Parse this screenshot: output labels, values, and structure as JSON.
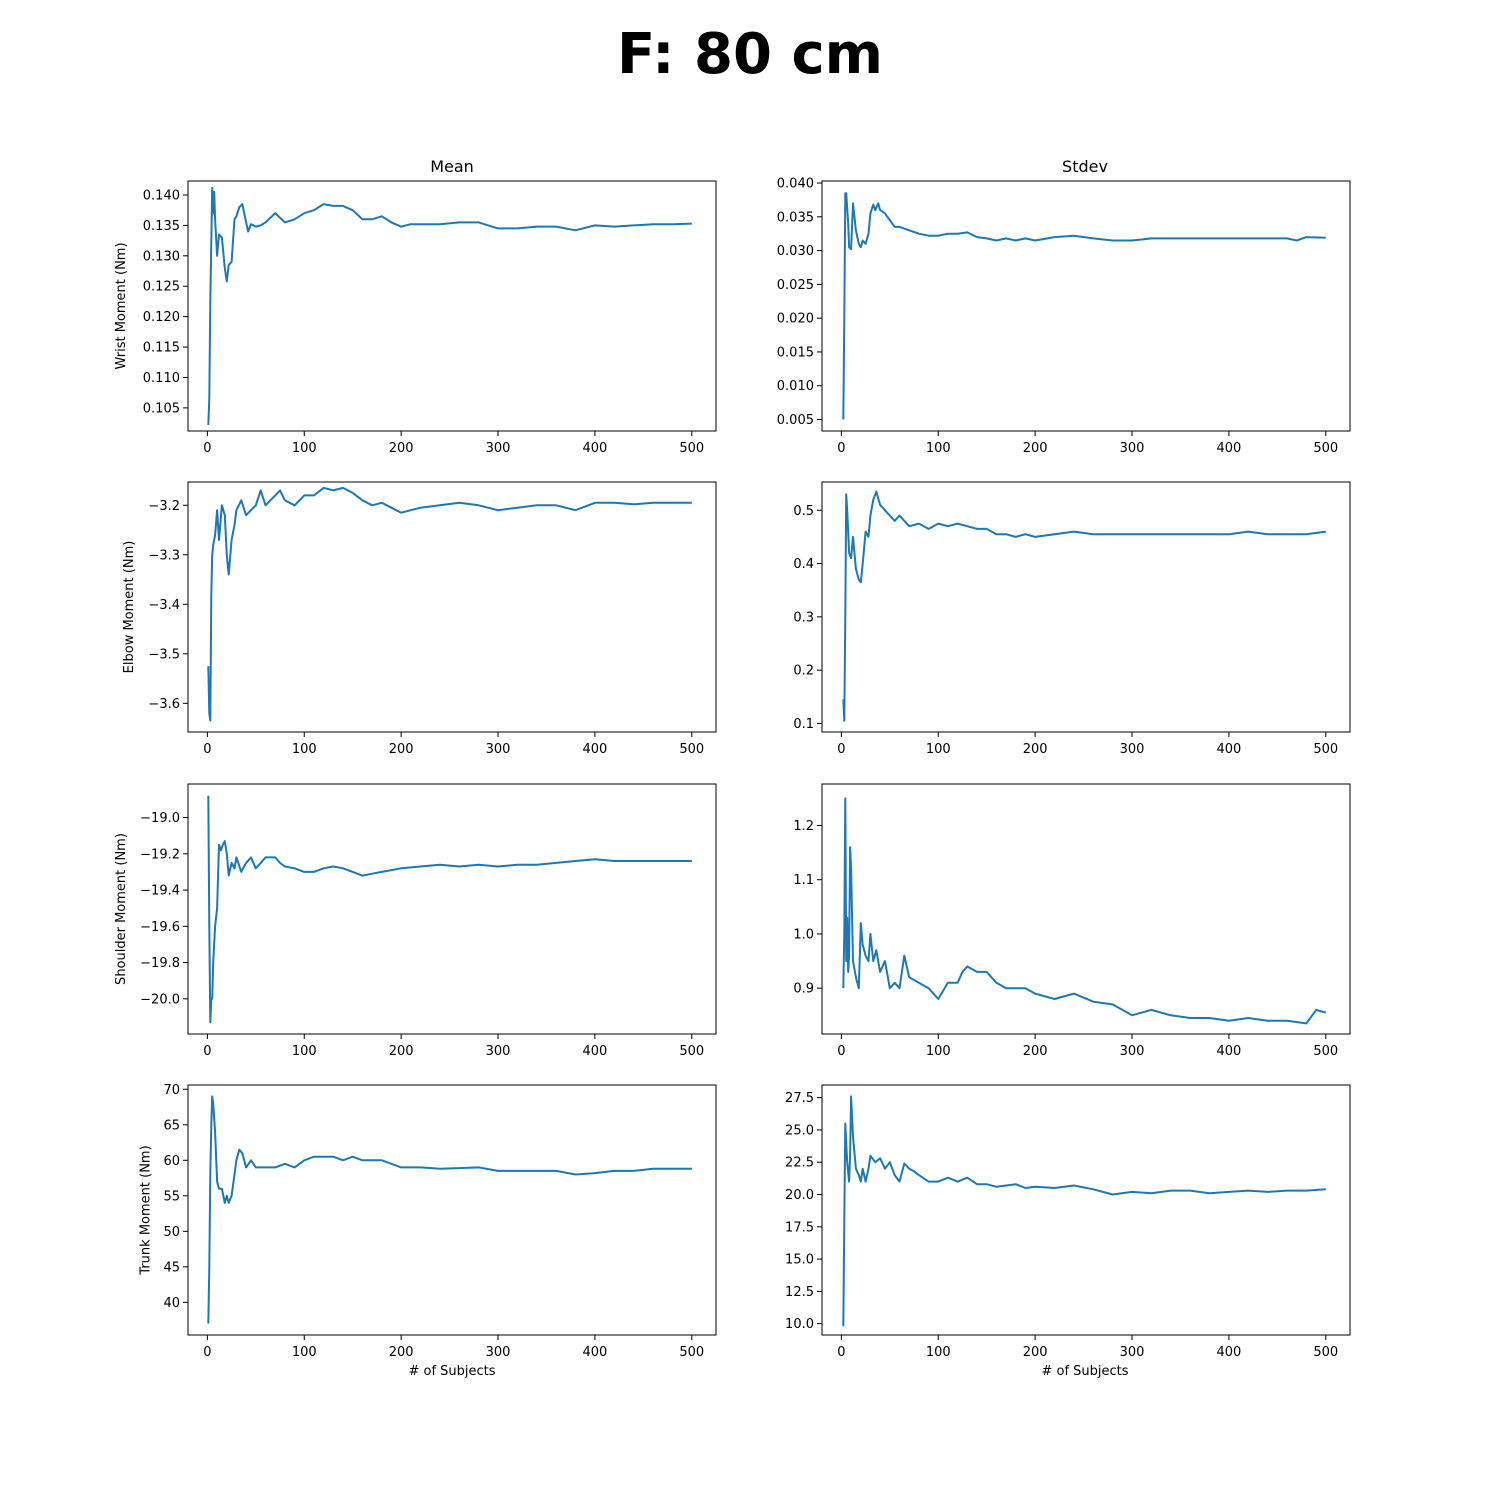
{
  "title": "F: 80 cm",
  "column_titles": [
    "Mean",
    "Stdev"
  ],
  "xlabel": "# of Subjects",
  "colors": {
    "line": "#1f77b4"
  },
  "chart_data": [
    {
      "type": "line",
      "column": "Mean",
      "ylabel": "Wrist Moment (Nm)",
      "xlim": [
        -20,
        525
      ],
      "ylim": [
        0.1012,
        0.1423
      ],
      "xticks": [
        0,
        100,
        200,
        300,
        400,
        500
      ],
      "yticks": [
        0.105,
        0.11,
        0.115,
        0.12,
        0.125,
        0.13,
        0.135,
        0.14
      ],
      "ytick_labels": [
        "0.105",
        "0.110",
        "0.115",
        "0.120",
        "0.125",
        "0.130",
        "0.135",
        "0.140"
      ],
      "x": [
        1,
        2,
        3,
        5,
        6,
        7,
        8,
        10,
        12,
        15,
        18,
        20,
        22,
        25,
        28,
        30,
        33,
        36,
        38,
        42,
        45,
        50,
        55,
        60,
        70,
        80,
        90,
        100,
        110,
        120,
        130,
        140,
        150,
        160,
        170,
        180,
        190,
        200,
        210,
        220,
        240,
        260,
        280,
        300,
        320,
        340,
        360,
        380,
        400,
        420,
        440,
        460,
        480,
        500
      ],
      "y": [
        0.1022,
        0.1065,
        0.1225,
        0.1412,
        0.137,
        0.1405,
        0.136,
        0.13,
        0.1335,
        0.133,
        0.128,
        0.1258,
        0.1285,
        0.129,
        0.136,
        0.1365,
        0.138,
        0.1385,
        0.137,
        0.134,
        0.1352,
        0.1348,
        0.135,
        0.1355,
        0.137,
        0.1355,
        0.136,
        0.137,
        0.1375,
        0.1385,
        0.1382,
        0.1382,
        0.1375,
        0.136,
        0.136,
        0.1365,
        0.1355,
        0.1348,
        0.1352,
        0.1352,
        0.1352,
        0.1355,
        0.1355,
        0.1345,
        0.1345,
        0.1348,
        0.1348,
        0.1342,
        0.135,
        0.1348,
        0.135,
        0.1352,
        0.1352,
        0.1353
      ]
    },
    {
      "type": "line",
      "column": "Stdev",
      "ylabel": "",
      "xlim": [
        -20,
        525
      ],
      "ylim": [
        0.0033,
        0.0403
      ],
      "xticks": [
        0,
        100,
        200,
        300,
        400,
        500
      ],
      "yticks": [
        0.005,
        0.01,
        0.015,
        0.02,
        0.025,
        0.03,
        0.035,
        0.04
      ],
      "ytick_labels": [
        "0.005",
        "0.010",
        "0.015",
        "0.020",
        "0.025",
        "0.030",
        "0.035",
        "0.040"
      ],
      "x": [
        2,
        3,
        4,
        5,
        7,
        8,
        10,
        12,
        15,
        18,
        20,
        22,
        25,
        28,
        30,
        33,
        35,
        38,
        40,
        45,
        50,
        55,
        60,
        70,
        80,
        90,
        100,
        110,
        120,
        130,
        140,
        150,
        160,
        170,
        180,
        190,
        200,
        220,
        240,
        260,
        280,
        300,
        320,
        340,
        360,
        380,
        400,
        420,
        440,
        460,
        470,
        480,
        500
      ],
      "y": [
        0.005,
        0.02,
        0.0385,
        0.0385,
        0.034,
        0.0305,
        0.0302,
        0.037,
        0.033,
        0.031,
        0.0305,
        0.0315,
        0.031,
        0.0325,
        0.0355,
        0.0368,
        0.036,
        0.037,
        0.036,
        0.0355,
        0.0345,
        0.0335,
        0.0335,
        0.033,
        0.0325,
        0.0322,
        0.0322,
        0.0325,
        0.0325,
        0.0327,
        0.032,
        0.0318,
        0.0315,
        0.0318,
        0.0315,
        0.0318,
        0.0315,
        0.032,
        0.0322,
        0.0318,
        0.0315,
        0.0315,
        0.0318,
        0.0318,
        0.0318,
        0.0318,
        0.0318,
        0.0318,
        0.0318,
        0.0318,
        0.0315,
        0.032,
        0.0319
      ]
    },
    {
      "type": "line",
      "column": "Mean",
      "ylabel": "Elbow Moment (Nm)",
      "xlim": [
        -20,
        525
      ],
      "ylim": [
        -3.658,
        -3.153
      ],
      "xticks": [
        0,
        100,
        200,
        300,
        400,
        500
      ],
      "yticks": [
        -3.6,
        -3.5,
        -3.4,
        -3.3,
        -3.2
      ],
      "ytick_labels": [
        "−3.6",
        "−3.5",
        "−3.4",
        "−3.3",
        "−3.2"
      ],
      "x": [
        1,
        2,
        3,
        4,
        5,
        6,
        8,
        10,
        12,
        15,
        18,
        20,
        22,
        25,
        28,
        30,
        35,
        40,
        45,
        50,
        55,
        60,
        70,
        75,
        80,
        90,
        100,
        110,
        120,
        130,
        140,
        150,
        160,
        170,
        180,
        190,
        200,
        220,
        240,
        260,
        280,
        300,
        320,
        340,
        360,
        380,
        400,
        420,
        440,
        460,
        480,
        500
      ],
      "y": [
        -3.525,
        -3.62,
        -3.635,
        -3.38,
        -3.3,
        -3.28,
        -3.26,
        -3.21,
        -3.27,
        -3.2,
        -3.22,
        -3.3,
        -3.34,
        -3.27,
        -3.24,
        -3.21,
        -3.19,
        -3.22,
        -3.21,
        -3.2,
        -3.17,
        -3.2,
        -3.18,
        -3.17,
        -3.19,
        -3.2,
        -3.18,
        -3.18,
        -3.165,
        -3.17,
        -3.165,
        -3.175,
        -3.19,
        -3.2,
        -3.195,
        -3.205,
        -3.215,
        -3.205,
        -3.2,
        -3.195,
        -3.2,
        -3.21,
        -3.205,
        -3.2,
        -3.2,
        -3.21,
        -3.195,
        -3.195,
        -3.198,
        -3.195,
        -3.195,
        -3.195
      ]
    },
    {
      "type": "line",
      "column": "Stdev",
      "ylabel": "",
      "xlim": [
        -20,
        525
      ],
      "ylim": [
        0.084,
        0.553
      ],
      "xticks": [
        0,
        100,
        200,
        300,
        400,
        500
      ],
      "yticks": [
        0.1,
        0.2,
        0.3,
        0.4,
        0.5
      ],
      "ytick_labels": [
        "0.1",
        "0.2",
        "0.3",
        "0.4",
        "0.5"
      ],
      "x": [
        2,
        3,
        4,
        5,
        6,
        8,
        10,
        12,
        15,
        18,
        20,
        22,
        25,
        28,
        30,
        33,
        36,
        40,
        45,
        50,
        55,
        60,
        70,
        80,
        90,
        100,
        110,
        120,
        130,
        140,
        150,
        160,
        170,
        180,
        190,
        200,
        220,
        240,
        260,
        280,
        300,
        320,
        340,
        360,
        380,
        400,
        420,
        440,
        460,
        480,
        500
      ],
      "y": [
        0.145,
        0.105,
        0.3,
        0.53,
        0.5,
        0.42,
        0.41,
        0.45,
        0.39,
        0.37,
        0.365,
        0.4,
        0.46,
        0.45,
        0.49,
        0.52,
        0.535,
        0.51,
        0.5,
        0.49,
        0.48,
        0.49,
        0.47,
        0.475,
        0.465,
        0.475,
        0.47,
        0.475,
        0.47,
        0.465,
        0.465,
        0.455,
        0.455,
        0.45,
        0.455,
        0.45,
        0.455,
        0.46,
        0.455,
        0.455,
        0.455,
        0.455,
        0.455,
        0.455,
        0.455,
        0.455,
        0.46,
        0.455,
        0.455,
        0.455,
        0.46
      ]
    },
    {
      "type": "line",
      "column": "Mean",
      "ylabel": "Shoulder Moment (Nm)",
      "xlim": [
        -20,
        525
      ],
      "ylim": [
        -20.194,
        -18.815
      ],
      "xticks": [
        0,
        100,
        200,
        300,
        400,
        500
      ],
      "yticks": [
        -20.0,
        -19.8,
        -19.6,
        -19.4,
        -19.2,
        -19.0
      ],
      "ytick_labels": [
        "−20.0",
        "−19.8",
        "−19.6",
        "−19.4",
        "−19.2",
        "−19.0"
      ],
      "x": [
        1,
        2,
        3,
        4,
        5,
        6,
        8,
        10,
        12,
        14,
        16,
        18,
        20,
        22,
        25,
        28,
        30,
        35,
        40,
        45,
        50,
        55,
        60,
        70,
        75,
        80,
        90,
        100,
        110,
        120,
        130,
        140,
        150,
        160,
        170,
        180,
        190,
        200,
        220,
        240,
        260,
        280,
        300,
        320,
        340,
        360,
        380,
        400,
        420,
        440,
        460,
        480,
        500
      ],
      "y": [
        -18.88,
        -19.6,
        -20.13,
        -20.0,
        -20.0,
        -19.8,
        -19.6,
        -19.5,
        -19.15,
        -19.18,
        -19.15,
        -19.13,
        -19.2,
        -19.32,
        -19.25,
        -19.28,
        -19.22,
        -19.3,
        -19.25,
        -19.22,
        -19.28,
        -19.25,
        -19.22,
        -19.22,
        -19.25,
        -19.27,
        -19.28,
        -19.3,
        -19.3,
        -19.28,
        -19.27,
        -19.28,
        -19.3,
        -19.32,
        -19.31,
        -19.3,
        -19.29,
        -19.28,
        -19.27,
        -19.26,
        -19.27,
        -19.26,
        -19.27,
        -19.26,
        -19.26,
        -19.25,
        -19.24,
        -19.23,
        -19.24,
        -19.24,
        -19.24,
        -19.24,
        -19.24
      ]
    },
    {
      "type": "line",
      "column": "Stdev",
      "ylabel": "",
      "xlim": [
        -20,
        525
      ],
      "ylim": [
        0.8155,
        1.2765
      ],
      "xticks": [
        0,
        100,
        200,
        300,
        400,
        500
      ],
      "yticks": [
        0.9,
        1.0,
        1.1,
        1.2
      ],
      "ytick_labels": [
        "0.9",
        "1.0",
        "1.1",
        "1.2"
      ],
      "x": [
        2,
        3,
        4,
        5,
        6,
        7,
        8,
        9,
        10,
        12,
        15,
        18,
        20,
        22,
        25,
        28,
        30,
        33,
        36,
        40,
        45,
        50,
        55,
        60,
        65,
        70,
        80,
        90,
        100,
        110,
        120,
        125,
        130,
        140,
        150,
        160,
        170,
        180,
        190,
        200,
        220,
        240,
        260,
        280,
        300,
        320,
        340,
        360,
        380,
        400,
        420,
        440,
        460,
        480,
        490,
        500
      ],
      "y": [
        0.9,
        1.0,
        1.25,
        0.95,
        1.03,
        0.93,
        0.96,
        1.16,
        1.12,
        0.95,
        0.92,
        0.9,
        1.02,
        0.98,
        0.96,
        0.95,
        1.0,
        0.95,
        0.97,
        0.93,
        0.95,
        0.9,
        0.91,
        0.9,
        0.96,
        0.92,
        0.91,
        0.9,
        0.88,
        0.91,
        0.91,
        0.93,
        0.94,
        0.93,
        0.93,
        0.91,
        0.9,
        0.9,
        0.9,
        0.89,
        0.88,
        0.89,
        0.875,
        0.87,
        0.85,
        0.86,
        0.85,
        0.845,
        0.845,
        0.84,
        0.845,
        0.84,
        0.84,
        0.835,
        0.86,
        0.855
      ]
    },
    {
      "type": "line",
      "column": "Mean",
      "ylabel": "Trunk Moment (Nm)",
      "xlim": [
        -20,
        525
      ],
      "ylim": [
        35.4,
        70.6
      ],
      "xticks": [
        0,
        100,
        200,
        300,
        400,
        500
      ],
      "yticks": [
        40,
        45,
        50,
        55,
        60,
        65,
        70
      ],
      "ytick_labels": [
        "40",
        "45",
        "50",
        "55",
        "60",
        "65",
        "70"
      ],
      "x": [
        1,
        2,
        3,
        4,
        5,
        6,
        8,
        10,
        12,
        15,
        18,
        20,
        22,
        25,
        28,
        30,
        33,
        36,
        40,
        45,
        50,
        55,
        60,
        70,
        80,
        90,
        100,
        110,
        120,
        130,
        140,
        150,
        160,
        170,
        180,
        190,
        200,
        220,
        240,
        260,
        280,
        300,
        320,
        340,
        360,
        380,
        400,
        420,
        440,
        460,
        480,
        500
      ],
      "y": [
        37,
        45,
        58,
        65,
        69,
        68,
        64,
        57,
        56,
        56,
        54,
        55,
        54,
        55,
        58,
        60,
        61.5,
        61,
        59,
        60,
        59,
        59,
        59,
        59,
        59.5,
        59,
        60,
        60.5,
        60.5,
        60.5,
        60,
        60.5,
        60,
        60,
        60,
        59.5,
        59,
        59,
        58.8,
        58.9,
        59,
        58.5,
        58.5,
        58.5,
        58.5,
        58,
        58.2,
        58.5,
        58.5,
        58.8,
        58.8,
        58.8
      ]
    },
    {
      "type": "line",
      "column": "Stdev",
      "ylabel": "",
      "xlim": [
        -20,
        525
      ],
      "ylim": [
        9.12,
        28.48
      ],
      "xticks": [
        0,
        100,
        200,
        300,
        400,
        500
      ],
      "yticks": [
        10.0,
        12.5,
        15.0,
        17.5,
        20.0,
        22.5,
        25.0,
        27.5
      ],
      "ytick_labels": [
        "10.0",
        "12.5",
        "15.0",
        "17.5",
        "20.0",
        "22.5",
        "25.0",
        "27.5"
      ],
      "x": [
        2,
        3,
        4,
        5,
        6,
        8,
        9,
        10,
        12,
        15,
        18,
        20,
        22,
        25,
        28,
        30,
        35,
        40,
        45,
        50,
        55,
        60,
        65,
        70,
        75,
        80,
        90,
        100,
        110,
        120,
        130,
        140,
        150,
        160,
        170,
        180,
        190,
        200,
        220,
        240,
        260,
        280,
        300,
        320,
        340,
        360,
        380,
        400,
        420,
        440,
        460,
        480,
        500
      ],
      "y": [
        9.8,
        18,
        25.5,
        24,
        22.5,
        21,
        23,
        27.6,
        24.5,
        22,
        21.5,
        21,
        22,
        21,
        22,
        23,
        22.5,
        22.8,
        22,
        22.5,
        21.5,
        21,
        22.4,
        22,
        21.8,
        21.5,
        21,
        21,
        21.3,
        21,
        21.3,
        20.8,
        20.8,
        20.6,
        20.7,
        20.8,
        20.5,
        20.6,
        20.5,
        20.7,
        20.4,
        20,
        20.2,
        20.1,
        20.3,
        20.3,
        20.1,
        20.2,
        20.3,
        20.2,
        20.3,
        20.3,
        20.4
      ]
    }
  ]
}
